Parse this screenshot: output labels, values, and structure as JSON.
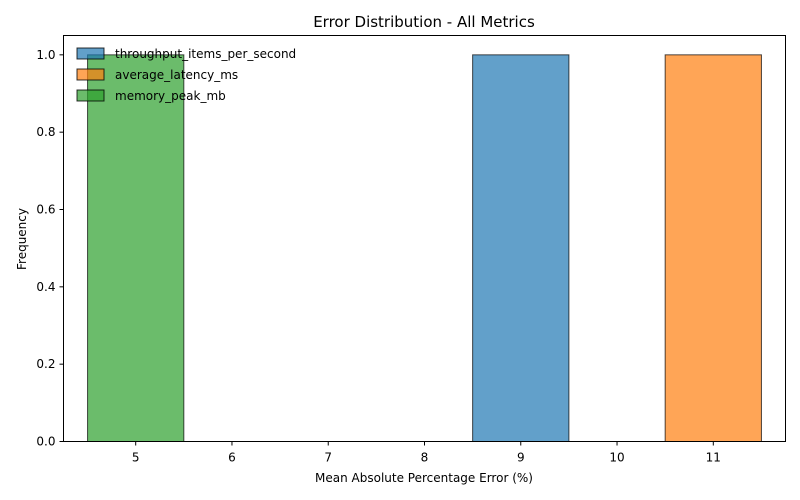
{
  "chart_data": {
    "type": "bar",
    "title": "Error Distribution - All Metrics",
    "xlabel": "Mean Absolute Percentage Error (%)",
    "ylabel": "Frequency",
    "xlim": [
      4.25,
      11.75
    ],
    "ylim": [
      0,
      1.05
    ],
    "x_ticks": [
      5,
      6,
      7,
      8,
      9,
      10,
      11
    ],
    "y_ticks": [
      0.0,
      0.2,
      0.4,
      0.6,
      0.8,
      1.0
    ],
    "grid": false,
    "legend_position": "top-left",
    "series": [
      {
        "name": "throughput_items_per_second",
        "color": "#1f77b4",
        "bins": [
          {
            "x0": 8.5,
            "x1": 9.5,
            "count": 1
          }
        ]
      },
      {
        "name": "average_latency_ms",
        "color": "#ff7f0e",
        "bins": [
          {
            "x0": 10.5,
            "x1": 11.5,
            "count": 1
          }
        ]
      },
      {
        "name": "memory_peak_mb",
        "color": "#2ca02c",
        "bins": [
          {
            "x0": 4.5,
            "x1": 5.5,
            "count": 1
          }
        ]
      }
    ]
  }
}
